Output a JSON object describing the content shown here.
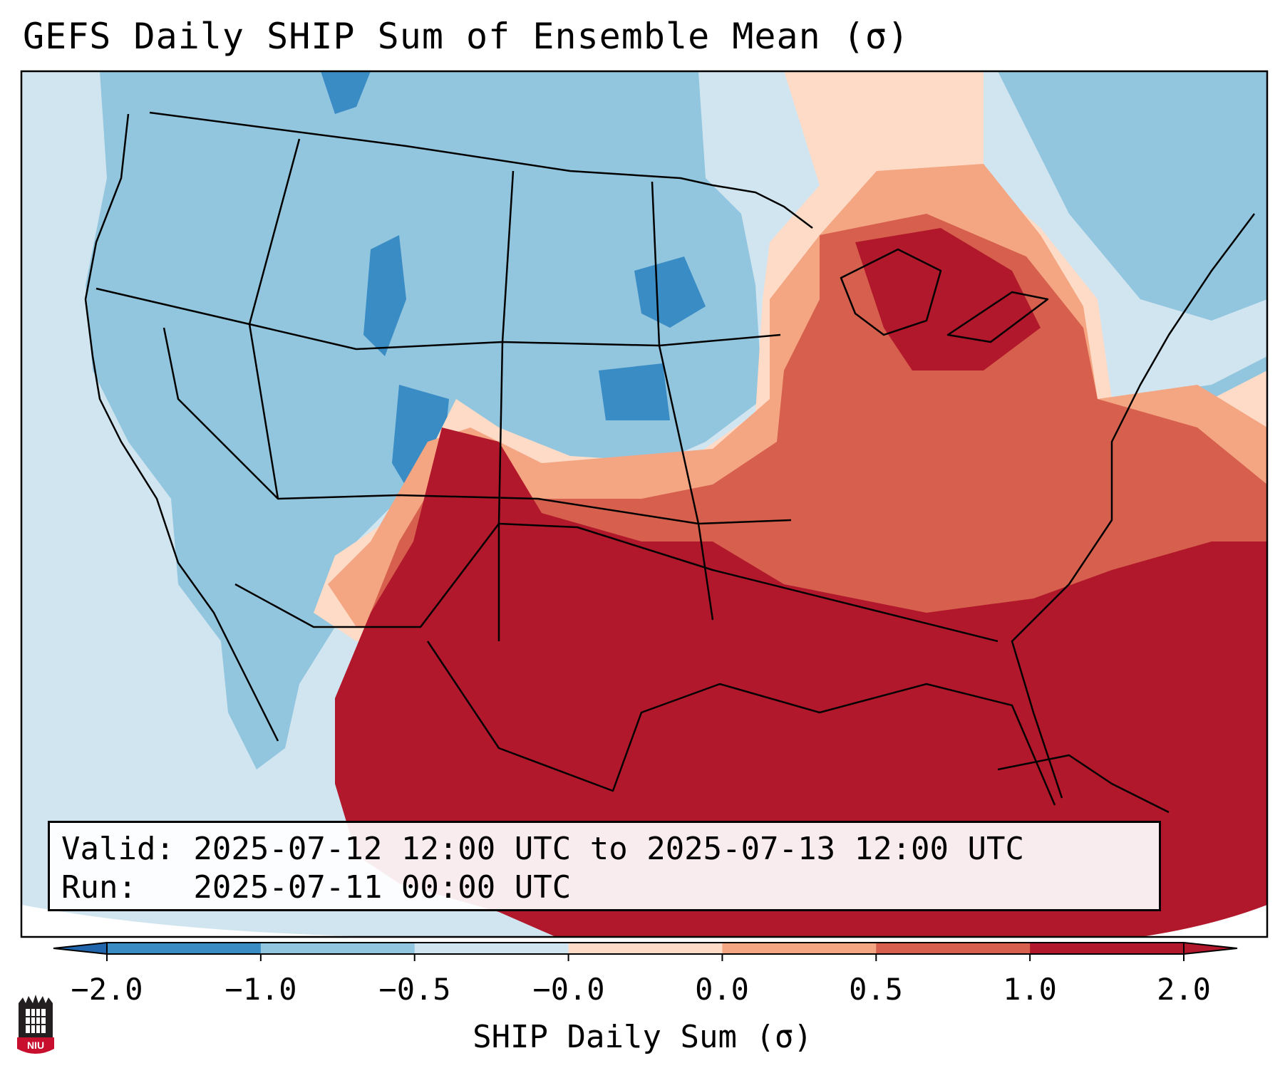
{
  "title": "GEFS Daily SHIP Sum of Ensemble Mean (σ)",
  "info": {
    "valid_line": "Valid: 2025-07-12 12:00 UTC to 2025-07-13 12:00 UTC",
    "run_line": "Run:   2025-07-11 00:00 UTC"
  },
  "colorbar": {
    "label": "SHIP Daily Sum (σ)",
    "ticks": [
      "−2.0",
      "−1.0",
      "−0.5",
      "−0.0",
      "0.0",
      "0.5",
      "1.0",
      "2.0"
    ],
    "colors": [
      "#3a8cc4",
      "#92c5de",
      "#d1e5f0",
      "#fddbc7",
      "#f4a582",
      "#d6604d",
      "#b2182b"
    ],
    "extend_low_color": "#2166ac",
    "extend_high_color": "#b2182b"
  },
  "logo": {
    "name": "niu-logo",
    "text": "NIU"
  }
}
